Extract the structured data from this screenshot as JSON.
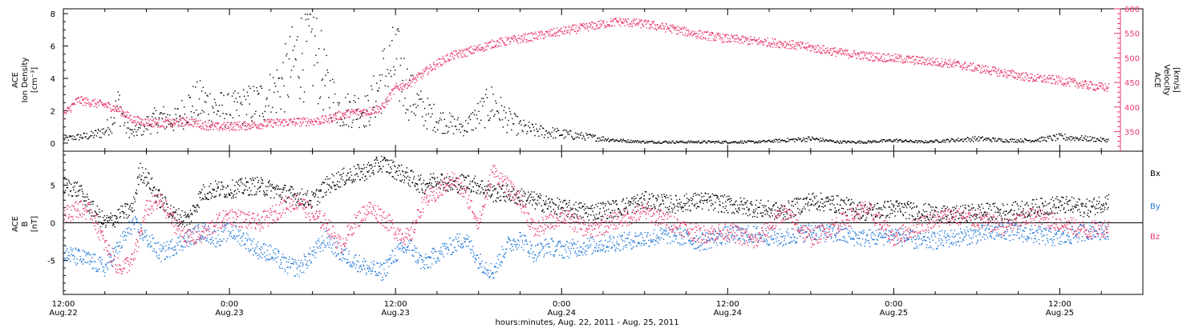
{
  "colors": {
    "axis": "#000000",
    "density": "#000000",
    "velocity": "#e8386a",
    "bx": "#000000",
    "by": "#1f78d8",
    "bz": "#e8386a"
  },
  "chart_data": [
    {
      "type": "scatter",
      "panel": "top",
      "ylabel_lines": [
        "ACE",
        "Ion Density",
        "[cm⁻³]"
      ],
      "ylim": [
        -0.5,
        8.3
      ],
      "yticks": [
        0,
        2,
        4,
        6,
        8
      ],
      "ylabel_right_lines": [
        "ACE",
        "Velocity",
        "[km/s]"
      ],
      "ylim_right": [
        310,
        600
      ],
      "yticks_right": [
        350,
        400,
        450,
        500,
        550,
        600
      ],
      "xlim_hours": [
        0,
        78
      ],
      "series": [
        {
          "name": "",
          "axis": "left",
          "color_key": "density",
          "x": [
            0,
            1,
            2,
            3,
            3.5,
            4,
            4.5,
            5,
            5.5,
            6,
            7,
            8,
            9,
            10,
            11,
            12,
            13,
            14,
            15,
            16,
            17,
            18,
            19,
            20,
            21,
            22,
            23,
            24,
            25,
            26,
            27,
            28,
            29,
            30,
            31,
            32,
            33,
            34,
            36,
            38,
            40,
            42,
            44,
            46,
            48,
            50,
            52,
            54,
            56,
            58,
            60,
            62,
            64,
            66,
            68,
            70,
            72,
            74,
            75.5
          ],
          "y": [
            0.3,
            0.4,
            0.5,
            0.8,
            1.5,
            2.5,
            1.0,
            0.6,
            0.9,
            1.2,
            1.6,
            1.4,
            2.3,
            2.6,
            2.2,
            2.0,
            2.3,
            2.5,
            3.0,
            4.0,
            5.5,
            6.0,
            3.5,
            2.0,
            2.2,
            2.0,
            4.0,
            5.0,
            3.0,
            2.0,
            1.5,
            1.2,
            1.0,
            1.8,
            2.5,
            1.5,
            1.0,
            0.8,
            0.6,
            0.4,
            0.2,
            0.1,
            0.1,
            0.1,
            0.1,
            0.1,
            0.2,
            0.3,
            0.1,
            0.1,
            0.2,
            0.1,
            0.2,
            0.3,
            0.2,
            0.2,
            0.4,
            0.3,
            0.2
          ]
        },
        {
          "name": "",
          "axis": "right",
          "color_key": "velocity",
          "x": [
            0,
            1,
            2,
            3,
            4,
            5,
            6,
            7,
            8,
            9,
            10,
            11,
            12,
            13,
            14,
            15,
            16,
            17,
            18,
            19,
            20,
            21,
            22,
            23,
            24,
            25,
            26,
            27,
            28,
            29,
            30,
            31,
            32,
            34,
            36,
            38,
            40,
            42,
            44,
            46,
            48,
            50,
            52,
            54,
            56,
            58,
            60,
            62,
            64,
            66,
            68,
            70,
            72,
            74,
            75.5
          ],
          "y": [
            385,
            415,
            410,
            405,
            395,
            375,
            370,
            368,
            368,
            372,
            365,
            360,
            362,
            363,
            365,
            368,
            370,
            371,
            372,
            375,
            385,
            390,
            392,
            400,
            440,
            450,
            470,
            490,
            505,
            512,
            520,
            530,
            535,
            545,
            555,
            565,
            575,
            570,
            560,
            548,
            540,
            535,
            530,
            522,
            512,
            505,
            500,
            495,
            490,
            480,
            470,
            460,
            455,
            445,
            440
          ]
        }
      ]
    },
    {
      "type": "scatter",
      "panel": "bottom",
      "ylabel_lines": [
        "ACE",
        "B",
        "[nT]"
      ],
      "ylim": [
        -9.5,
        9.5
      ],
      "yticks": [
        -5,
        0,
        5
      ],
      "xlim_hours": [
        0,
        78
      ],
      "xticks": [
        {
          "hour": 0,
          "line1": "12:00",
          "line2": "Aug.22"
        },
        {
          "hour": 12,
          "line1": "0:00",
          "line2": "Aug.23"
        },
        {
          "hour": 24,
          "line1": "12:00",
          "line2": "Aug.23"
        },
        {
          "hour": 36,
          "line1": "0:00",
          "line2": "Aug.24"
        },
        {
          "hour": 48,
          "line1": "12:00",
          "line2": "Aug.24"
        },
        {
          "hour": 60,
          "line1": "0:00",
          "line2": "Aug.25"
        },
        {
          "hour": 72,
          "line1": "12:00",
          "line2": "Aug.25"
        }
      ],
      "xlabel": "hours:minutes, Aug. 22, 2011 - Aug. 25, 2011",
      "legend_position": "right",
      "series": [
        {
          "name": "Bx",
          "color_key": "bx",
          "x": [
            0,
            1,
            2,
            3,
            4,
            5,
            5.5,
            6,
            7,
            8,
            9,
            10,
            11,
            12,
            13,
            14,
            15,
            16,
            17,
            18,
            19,
            20,
            21,
            22,
            23,
            24,
            25,
            26,
            27,
            28,
            29,
            30,
            31,
            32,
            33,
            34,
            35,
            36,
            38,
            40,
            42,
            44,
            46,
            48,
            50,
            52,
            54,
            56,
            58,
            60,
            62,
            64,
            66,
            68,
            70,
            72,
            74,
            75.5
          ],
          "y": [
            5,
            4.5,
            2,
            0,
            1,
            2,
            7,
            6,
            3,
            1,
            0.5,
            4,
            4.5,
            4.5,
            4.8,
            5,
            4.5,
            4,
            3.5,
            3,
            5,
            6,
            6.5,
            7,
            8,
            7,
            6,
            5,
            6,
            5,
            5.5,
            5,
            4,
            4,
            3.5,
            3,
            2.5,
            2,
            1.5,
            2,
            3,
            2.5,
            3,
            2.5,
            2,
            1.5,
            3,
            2.5,
            1.5,
            2,
            1.5,
            1,
            1.5,
            1.5,
            2,
            2.5,
            2,
            3
          ]
        },
        {
          "name": "By",
          "color_key": "by",
          "x": [
            0,
            1,
            2,
            3,
            4,
            5,
            6,
            7,
            8,
            9,
            10,
            11,
            12,
            13,
            14,
            15,
            16,
            17,
            18,
            19,
            20,
            21,
            22,
            23,
            24,
            25,
            26,
            27,
            28,
            29,
            30,
            31,
            32,
            33,
            34,
            35,
            36,
            38,
            40,
            42,
            44,
            46,
            48,
            50,
            52,
            54,
            56,
            58,
            60,
            62,
            64,
            66,
            68,
            70,
            72,
            74,
            75.5
          ],
          "y": [
            -4,
            -4.5,
            -5,
            -6,
            -3,
            0,
            -2,
            -4,
            -3,
            -2,
            -1,
            -2,
            -1,
            -2,
            -3.5,
            -4,
            -5.5,
            -6,
            -4,
            -2,
            -4,
            -5,
            -6,
            -6.5,
            -4,
            -3,
            -5.5,
            -4,
            -3,
            -2,
            -5,
            -6.5,
            -3,
            -2,
            -4,
            -3,
            -3.5,
            -3,
            -2.5,
            -2,
            -1.5,
            -2.5,
            -1.5,
            -1.5,
            -2,
            -1,
            -1.5,
            -2,
            -1.5,
            -2.5,
            -2,
            -1.5,
            -1,
            -1.5,
            -2,
            -1,
            -1
          ]
        },
        {
          "name": "Bz",
          "color_key": "bz",
          "x": [
            0,
            1,
            2,
            3,
            4,
            5,
            6,
            7,
            8,
            9,
            10,
            11,
            12,
            13,
            14,
            15,
            16,
            17,
            18,
            19,
            20,
            21,
            22,
            23,
            24,
            25,
            26,
            27,
            28,
            29,
            30,
            31,
            32,
            33,
            34,
            35,
            36,
            38,
            40,
            42,
            44,
            46,
            48,
            50,
            52,
            54,
            56,
            58,
            60,
            62,
            64,
            66,
            68,
            70,
            72,
            74,
            75.5
          ],
          "y": [
            1,
            2,
            1.5,
            -3,
            -6,
            -5,
            2,
            3,
            0,
            -2,
            -1.5,
            0,
            1,
            0.5,
            0,
            1,
            2.5,
            3,
            1,
            0,
            -3,
            0,
            2,
            1,
            -1,
            -2,
            3,
            4,
            6,
            4,
            0,
            7,
            5,
            3,
            -1,
            0,
            1,
            -1,
            0.5,
            1.5,
            0,
            -1.5,
            -1,
            -2.5,
            1.5,
            -2,
            0,
            2,
            -2,
            0,
            1,
            0.5,
            -0.5,
            1,
            0,
            -1,
            -0.5
          ]
        }
      ]
    }
  ]
}
